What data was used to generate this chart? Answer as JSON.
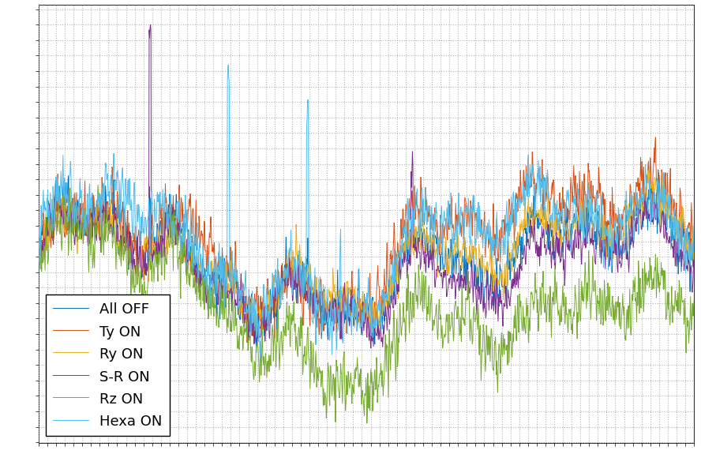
{
  "series_labels": [
    "All OFF",
    "Ty ON",
    "Ry ON",
    "S-R ON",
    "Rz ON",
    "Hexa ON"
  ],
  "series_colors": [
    "#0072BD",
    "#D95319",
    "#EDB120",
    "#7E2F8E",
    "#77AC30",
    "#4DBEEE"
  ],
  "series_linewidths": [
    0.7,
    0.7,
    0.7,
    0.7,
    0.7,
    0.7
  ],
  "n_points": 1500,
  "background_color": "#FFFFFF",
  "grid_color": "#AAAAAA",
  "legend_loc": "lower left",
  "legend_fontsize": 13,
  "legend_framealpha": 1.0,
  "figsize": [
    8.88,
    5.94
  ],
  "dpi": 100
}
